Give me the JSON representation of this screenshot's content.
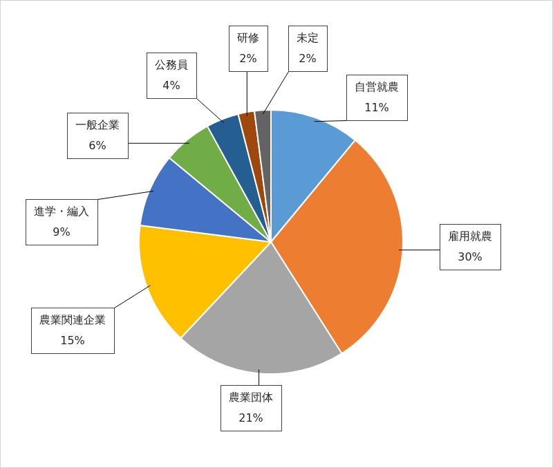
{
  "chart_data": {
    "type": "pie",
    "categories": [
      "自営就農",
      "雇用就農",
      "農業団体",
      "農業関連企業",
      "進学・編入",
      "一般企業",
      "公務員",
      "研修",
      "未定"
    ],
    "values": [
      11,
      30,
      21,
      15,
      9,
      6,
      4,
      2,
      2
    ],
    "value_labels": [
      "11%",
      "30%",
      "21%",
      "15%",
      "9%",
      "6%",
      "4%",
      "2%",
      "2%"
    ],
    "colors": [
      "#5b9bd5",
      "#ed7d31",
      "#a5a5a5",
      "#ffc000",
      "#4472c4",
      "#70ad47",
      "#255e91",
      "#9e480e",
      "#636363"
    ],
    "data_labels": true
  }
}
